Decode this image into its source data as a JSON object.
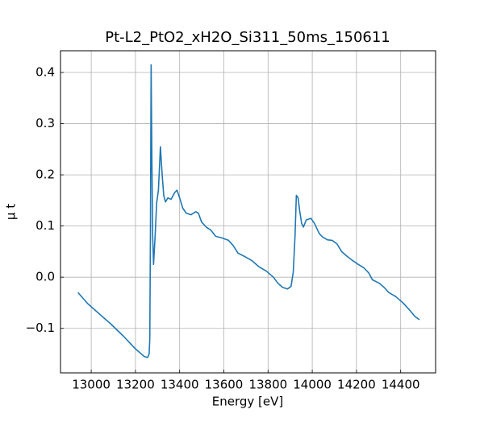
{
  "chart_data": {
    "type": "line",
    "title": "Pt-L2_PtO2_xH2O_Si311_50ms_150611",
    "xlabel": "Energy [eV]",
    "ylabel": "μ t",
    "color": "#1f77b4",
    "grid": true,
    "x": [
      12940,
      12985,
      13090,
      13145,
      13200,
      13240,
      13255,
      13262,
      13265,
      13268,
      13271,
      13274,
      13278,
      13282,
      13289,
      13296,
      13304,
      13313,
      13321,
      13328,
      13336,
      13347,
      13361,
      13377,
      13388,
      13400,
      13414,
      13430,
      13451,
      13473,
      13485,
      13499,
      13520,
      13541,
      13563,
      13589,
      13621,
      13642,
      13664,
      13696,
      13728,
      13760,
      13792,
      13824,
      13845,
      13866,
      13888,
      13904,
      13914,
      13922,
      13928,
      13936,
      13943,
      13952,
      13960,
      13973,
      13994,
      14010,
      14032,
      14048,
      14069,
      14090,
      14112,
      14133,
      14154,
      14181,
      14208,
      14234,
      14256,
      14272,
      14304,
      14325,
      14346,
      14378,
      14410,
      14442,
      14465,
      14485
    ],
    "values": [
      -0.03,
      -0.052,
      -0.092,
      -0.115,
      -0.14,
      -0.155,
      -0.157,
      -0.15,
      -0.12,
      0.1,
      0.415,
      0.25,
      0.08,
      0.025,
      0.08,
      0.145,
      0.17,
      0.255,
      0.2,
      0.16,
      0.147,
      0.155,
      0.152,
      0.165,
      0.17,
      0.155,
      0.135,
      0.125,
      0.122,
      0.128,
      0.125,
      0.108,
      0.098,
      0.092,
      0.08,
      0.077,
      0.072,
      0.062,
      0.047,
      0.04,
      0.032,
      0.02,
      0.012,
      0.0,
      -0.012,
      -0.02,
      -0.023,
      -0.018,
      0.01,
      0.08,
      0.16,
      0.155,
      0.13,
      0.105,
      0.098,
      0.112,
      0.115,
      0.105,
      0.085,
      0.078,
      0.073,
      0.072,
      0.065,
      0.05,
      0.042,
      0.033,
      0.025,
      0.018,
      0.008,
      -0.005,
      -0.012,
      -0.02,
      -0.03,
      -0.038,
      -0.05,
      -0.065,
      -0.077,
      -0.083
    ],
    "xlim": [
      12861,
      14558
    ],
    "xticks": [
      13000,
      13200,
      13400,
      13600,
      13800,
      14000,
      14200,
      14400
    ],
    "ylim": [
      -0.187,
      0.4425
    ],
    "yticks": [
      {
        "value": -0.1,
        "label": "−0.1"
      },
      {
        "value": 0,
        "label": "0.0"
      },
      0.1,
      0.2,
      0.3,
      0.4
    ]
  }
}
